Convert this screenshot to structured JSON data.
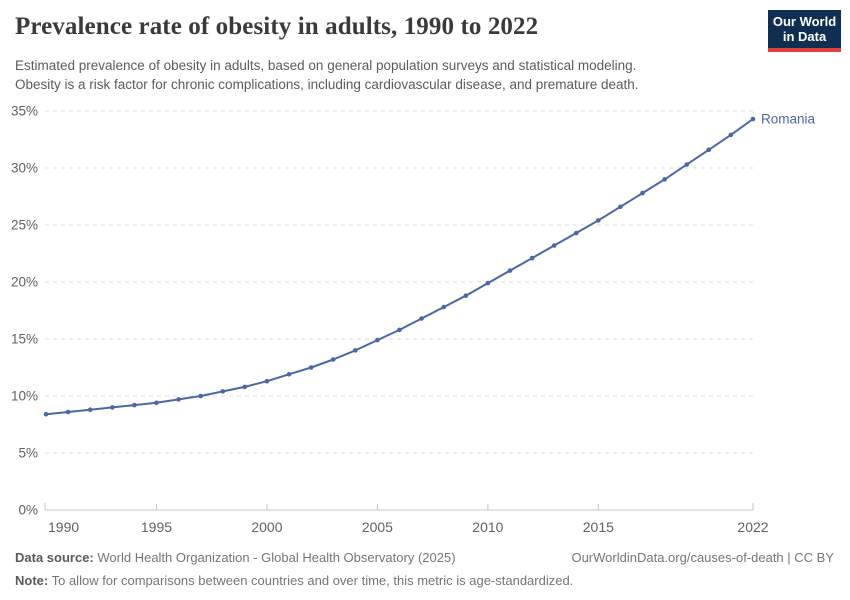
{
  "header": {
    "title": "Prevalence rate of obesity in adults, 1990 to 2022",
    "subtitle_lines": [
      "Estimated prevalence of obesity in adults, based on general population surveys and statistical modeling.",
      "Obesity is a risk factor for chronic complications, including cardiovascular disease, and premature death."
    ],
    "logo": {
      "line1": "Our World",
      "line2": "in Data",
      "bg_color": "#102d52",
      "accent_color": "#e0413c"
    }
  },
  "chart_data": {
    "type": "line",
    "title": "Prevalence rate of obesity in adults, 1990 to 2022",
    "unit": "%",
    "x": [
      1990,
      1991,
      1992,
      1993,
      1994,
      1995,
      1996,
      1997,
      1998,
      1999,
      2000,
      2001,
      2002,
      2003,
      2004,
      2005,
      2006,
      2007,
      2008,
      2009,
      2010,
      2011,
      2012,
      2013,
      2014,
      2015,
      2016,
      2017,
      2018,
      2019,
      2020,
      2021,
      2022
    ],
    "series": [
      {
        "name": "Romania",
        "color": "#4a68a5",
        "values": [
          8.4,
          8.6,
          8.8,
          9.0,
          9.2,
          9.4,
          9.7,
          10.0,
          10.4,
          10.8,
          11.3,
          11.9,
          12.5,
          13.2,
          14.0,
          14.9,
          15.8,
          16.8,
          17.8,
          18.8,
          19.9,
          21.0,
          22.1,
          23.2,
          24.3,
          25.4,
          26.6,
          27.8,
          29.0,
          30.3,
          31.6,
          32.9,
          34.3
        ]
      }
    ],
    "xlim": [
      1990,
      2022
    ],
    "ylim": [
      0,
      35
    ],
    "y_ticks": [
      0,
      5,
      10,
      15,
      20,
      25,
      30,
      35
    ],
    "y_tick_labels": [
      "0%",
      "5%",
      "10%",
      "15%",
      "20%",
      "25%",
      "30%",
      "35%"
    ],
    "x_ticks": [
      1990,
      1995,
      2000,
      2005,
      2010,
      2015,
      2022
    ],
    "grid": "horizontal-dashed",
    "legend_position": "end-of-line-label",
    "colors": {
      "grid": "#dcdcdc",
      "axis": "#c4c4c4",
      "tick_label": "#616161"
    }
  },
  "footer": {
    "data_source_label": "Data source:",
    "data_source_text": "World Health Organization - Global Health Observatory (2025)",
    "credit": "OurWorldinData.org/causes-of-death | CC BY",
    "note_label": "Note:",
    "note_text": "To allow for comparisons between countries and over time, this metric is age-standardized."
  }
}
